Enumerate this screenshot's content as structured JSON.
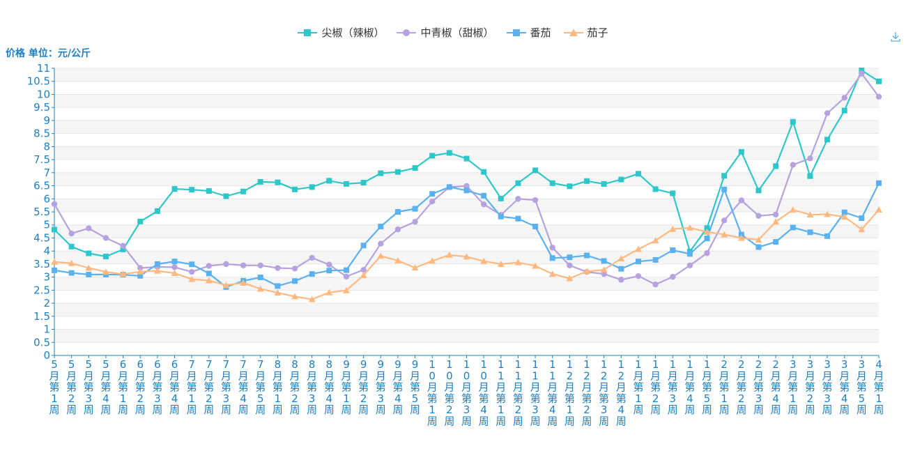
{
  "chart_data": {
    "type": "line",
    "ylabel": "价格 单位：元/公斤",
    "ylim": [
      0,
      11
    ],
    "yticks": [
      "0",
      "0.5",
      "1",
      "1.5",
      "2",
      "2.5",
      "3",
      "3.5",
      "4",
      "4.5",
      "5",
      "5.5",
      "6",
      "6.5",
      "7",
      "7.5",
      "8",
      "8.5",
      "9",
      "9.5",
      "10",
      "10.5",
      "11"
    ],
    "categories": [
      "5月第1周",
      "5月第2周",
      "5月第3周",
      "5月第4周",
      "6月第1周",
      "6月第2周",
      "6月第3周",
      "6月第4周",
      "7月第1周",
      "7月第2周",
      "7月第3周",
      "7月第4周",
      "7月第5周",
      "8月第1周",
      "8月第2周",
      "8月第3周",
      "8月第4周",
      "9月第1周",
      "9月第2周",
      "9月第3周",
      "9月第4周",
      "9月第5周",
      "10月第1周",
      "10月第2周",
      "10月第3周",
      "10月第4周",
      "11月第1周",
      "11月第2周",
      "11月第3周",
      "11月第4周",
      "12月第1周",
      "12月第2周",
      "12月第3周",
      "12月第4周",
      "1月第1周",
      "1月第2周",
      "1月第3周",
      "1月第4周",
      "1月第5周",
      "2月第1周",
      "2月第2周",
      "2月第3周",
      "2月第4周",
      "3月第1周",
      "3月第2周",
      "3月第3周",
      "3月第4周",
      "3月第5周",
      "4月第1周"
    ],
    "grid": true,
    "legend_position": "top-center",
    "series": [
      {
        "name": "尖椒（辣椒）",
        "color": "#2ec7c9",
        "marker": "square",
        "values": [
          4.82,
          4.17,
          3.91,
          3.79,
          4.06,
          5.13,
          5.53,
          6.38,
          6.35,
          6.3,
          6.1,
          6.28,
          6.65,
          6.63,
          6.36,
          6.45,
          6.69,
          6.57,
          6.62,
          6.98,
          7.03,
          7.18,
          7.65,
          7.76,
          7.54,
          7.03,
          6.01,
          6.6,
          7.09,
          6.6,
          6.48,
          6.68,
          6.57,
          6.74,
          6.96,
          6.37,
          6.21,
          3.98,
          4.88,
          6.88,
          7.8,
          6.32,
          7.25,
          8.95,
          6.87,
          8.27,
          9.38,
          10.92,
          10.5
        ]
      },
      {
        "name": "中青椒（甜椒）",
        "color": "#b6a2de",
        "marker": "circle",
        "values": [
          5.8,
          4.67,
          4.87,
          4.5,
          4.2,
          3.35,
          3.39,
          3.38,
          3.2,
          3.43,
          3.5,
          3.45,
          3.45,
          3.35,
          3.33,
          3.74,
          3.48,
          3.02,
          3.28,
          4.28,
          4.83,
          5.12,
          5.9,
          6.45,
          6.49,
          5.79,
          5.38,
          6.0,
          5.95,
          4.13,
          3.45,
          3.2,
          3.12,
          2.9,
          3.04,
          2.72,
          3.01,
          3.45,
          3.92,
          5.17,
          5.94,
          5.35,
          5.4,
          7.3,
          7.55,
          9.28,
          9.87,
          10.8,
          9.91
        ]
      },
      {
        "name": "番茄",
        "color": "#5ab1ef",
        "marker": "square",
        "values": [
          3.26,
          3.16,
          3.1,
          3.1,
          3.09,
          3.05,
          3.5,
          3.6,
          3.49,
          3.14,
          2.62,
          2.86,
          2.99,
          2.66,
          2.85,
          3.12,
          3.25,
          3.27,
          4.21,
          4.94,
          5.5,
          5.62,
          6.19,
          6.45,
          6.32,
          6.12,
          5.32,
          5.24,
          4.94,
          3.73,
          3.76,
          3.83,
          3.62,
          3.32,
          3.6,
          3.66,
          4.03,
          3.89,
          4.48,
          6.36,
          4.63,
          4.15,
          4.35,
          4.9,
          4.72,
          4.57,
          5.48,
          5.26,
          6.6
        ]
      },
      {
        "name": "茄子",
        "color": "#ffb980",
        "marker": "triangle",
        "values": [
          3.58,
          3.53,
          3.35,
          3.2,
          3.11,
          3.21,
          3.24,
          3.15,
          2.92,
          2.87,
          2.69,
          2.78,
          2.55,
          2.4,
          2.26,
          2.15,
          2.41,
          2.49,
          3.07,
          3.81,
          3.63,
          3.36,
          3.62,
          3.85,
          3.78,
          3.61,
          3.5,
          3.56,
          3.43,
          3.12,
          2.95,
          3.22,
          3.28,
          3.71,
          4.07,
          4.4,
          4.84,
          4.89,
          4.73,
          4.63,
          4.5,
          4.43,
          5.12,
          5.58,
          5.39,
          5.41,
          5.31,
          4.83,
          5.58
        ]
      }
    ]
  },
  "toolbar": {
    "download_icon": "download-icon"
  }
}
